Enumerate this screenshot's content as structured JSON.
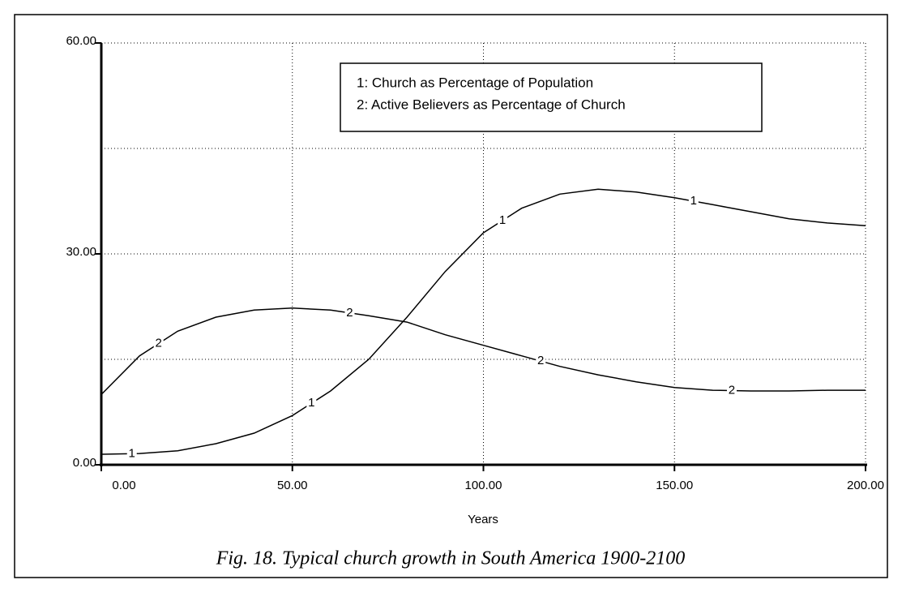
{
  "chart_data": {
    "type": "line",
    "caption": "Fig. 18. Typical church growth in South America 1900-2100",
    "x_label": "Years",
    "x": [
      0,
      10,
      20,
      30,
      40,
      50,
      60,
      70,
      80,
      90,
      100,
      110,
      120,
      130,
      140,
      150,
      160,
      170,
      180,
      190,
      200
    ],
    "series": [
      {
        "name": "1: Church as Percentage of Population",
        "marker": "1",
        "color": "#000000",
        "values": [
          1.5,
          1.6,
          2,
          3,
          4.5,
          7,
          10.5,
          15,
          21,
          27.5,
          33,
          36.5,
          38.5,
          39.2,
          38.8,
          38,
          37,
          36,
          35,
          34.4,
          34
        ]
      },
      {
        "name": "2: Active Believers as Percentage of Church",
        "marker": "2",
        "color": "#000000",
        "values": [
          10,
          15.5,
          19,
          21,
          22,
          22.3,
          22,
          21.2,
          20.3,
          18.5,
          17,
          15.5,
          14,
          12.8,
          11.8,
          11,
          10.6,
          10.5,
          10.5,
          10.6,
          10.6
        ]
      }
    ],
    "xlim": [
      0,
      200
    ],
    "xticks": [
      {
        "value": 0,
        "label": "0.00"
      },
      {
        "value": 50,
        "label": "50.00"
      },
      {
        "value": 100,
        "label": "100.00"
      },
      {
        "value": 150,
        "label": "150.00"
      },
      {
        "value": 200,
        "label": "200.00"
      }
    ],
    "ylim": [
      0,
      60
    ],
    "yticks": [
      {
        "value": 0,
        "label": "0.00"
      },
      {
        "value": 30,
        "label": "30.00"
      },
      {
        "value": 60,
        "label": "60.00"
      }
    ],
    "ygrid": [
      15,
      45
    ],
    "grid": true
  }
}
